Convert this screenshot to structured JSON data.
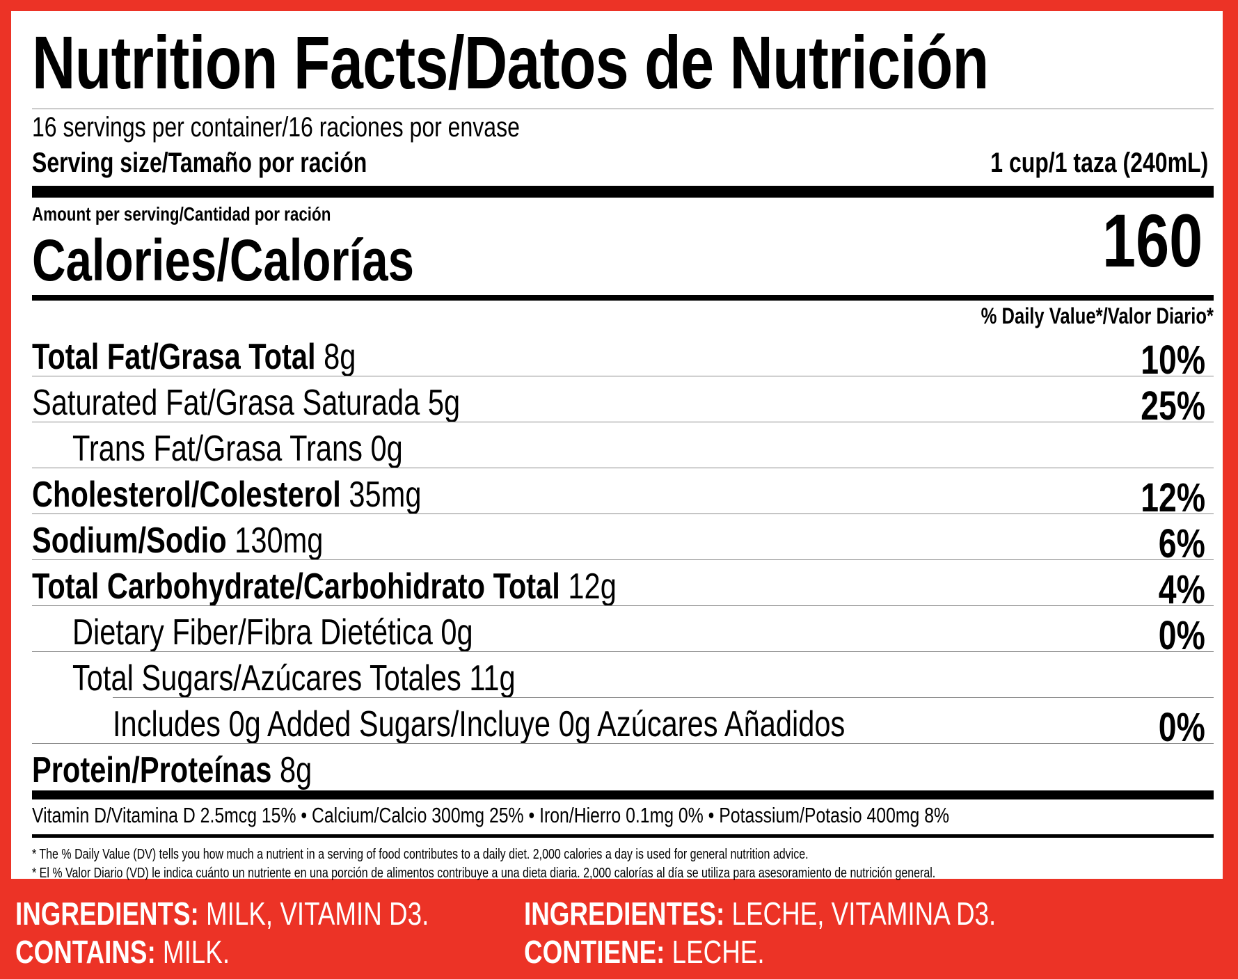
{
  "label": {
    "title": "Nutrition Facts/Datos de Nutrición",
    "servings": "16 servings per container/16 raciones por envase",
    "serving_size_label": "Serving size/Tamaño por ración",
    "serving_size_value": "1 cup/1 taza (240mL)",
    "amount_per_serving": "Amount per serving/Cantidad por ración",
    "calories_label": "Calories/Calorías",
    "calories_value": "160",
    "dv_header": "% Daily Value*/Valor Diario*",
    "nutrients": [
      {
        "name": "Total Fat/Grasa Total",
        "amount": " 8g",
        "dv": "10%"
      },
      {
        "name": "Saturated Fat/Grasa Saturada 5g",
        "amount": "",
        "dv": "25%"
      },
      {
        "name": "Trans Fat/Grasa Trans 0g",
        "amount": "",
        "dv": ""
      },
      {
        "name": "Cholesterol/Colesterol",
        "amount": " 35mg",
        "dv": "12%"
      },
      {
        "name": "Sodium/Sodio",
        "amount": " 130mg",
        "dv": "6%"
      },
      {
        "name": "Total Carbohydrate/Carbohidrato Total",
        "amount": " 12g",
        "dv": "4%"
      },
      {
        "name": "Dietary Fiber/Fibra Dietética 0g",
        "amount": "",
        "dv": "0%"
      },
      {
        "name": "Total Sugars/Azúcares Totales 11g",
        "amount": "",
        "dv": ""
      },
      {
        "name": "Includes 0g Added Sugars/Incluye 0g Azúcares Añadidos",
        "amount": "",
        "dv": "0%"
      },
      {
        "name": "Protein/Proteínas",
        "amount": " 8g",
        "dv": ""
      }
    ],
    "vitamins": "Vitamin D/Vitamina D 2.5mcg 15% • Calcium/Calcio 300mg 25% • Iron/Hierro 0.1mg 0% • Potassium/Potasio 400mg 8%",
    "footnote_en": "*  The % Daily Value (DV) tells you how much a nutrient in a serving of food contributes to a daily diet. 2,000 calories a day is used for general nutrition advice.",
    "footnote_es": "*  El % Valor Diario (VD) le indica cuánto un nutriente en una porción de alimentos contribuye a una dieta diaria. 2,000 calorías al día se utiliza para asesoramiento de nutrición general."
  },
  "ingredients": {
    "en_label": "INGREDIENTS:",
    "en_text": " MILK, VITAMIN D3.",
    "en_contains_label": "CONTAINS:",
    "en_contains_text": " MILK.",
    "es_label": "INGREDIENTES:",
    "es_text": " LECHE, VITAMINA D3.",
    "es_contains_label": "CONTIENE:",
    "es_contains_text": " LECHE."
  },
  "colors": {
    "border": "#ec3326",
    "panel": "#ffffff",
    "text": "#000000"
  }
}
